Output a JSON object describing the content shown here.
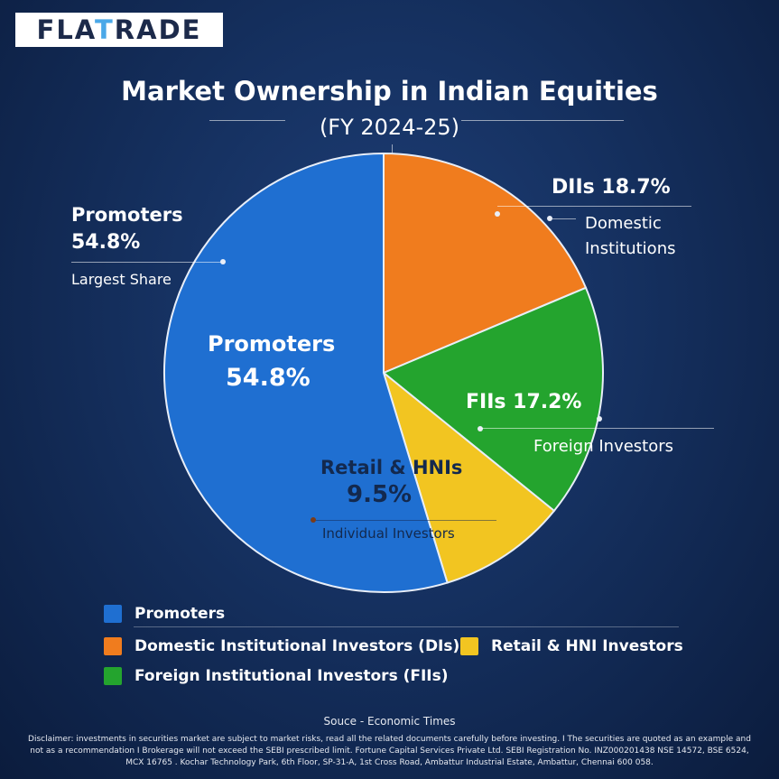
{
  "brand": {
    "prefix": "FLA",
    "accent": "T",
    "suffix": "RADE"
  },
  "title": "Market Ownership in Indian Equities",
  "subtitle": "(FY 2024-25)",
  "annotations": {
    "promoters_title": "Promoters",
    "promoters_pct": "54.8%",
    "promoters_note": "Largest Share",
    "diis_title": "DIIs 18.7%",
    "diis_note_1": "Domestic",
    "diis_note_2": "Institutions",
    "fiis_note": "Foreign Investors"
  },
  "slice_labels": {
    "promoters_name": "Promoters",
    "promoters_pct": "54.8%",
    "fiis": "FIIs 17.2%",
    "retail_name": "Retail & HNIs",
    "retail_pct": "9.5%",
    "retail_note": "Individual Investors"
  },
  "legend": [
    {
      "label": "Promoters",
      "color": "#1f6fd1"
    },
    {
      "label": "Domestic Institutional Investors (DIs)",
      "color": "#f07c1e"
    },
    {
      "label": "Retail & HNI Investors",
      "color": "#f2c521"
    },
    {
      "label": "Foreign Institutional Investors (FIIs)",
      "color": "#24a42e"
    }
  ],
  "source": "Souce -  Economic Times",
  "disclaimer": "Disclaimer: investments in securities market are subject to market risks, read all the related documents carefully before investing. I The securities are quoted as an example and not as a recommendation I Brokerage will not exceed the SEBI prescribed limit. Fortune Capital Services Private Ltd.   SEBI Registration No. INZ000201438 NSE 14572, BSE 6524, MCX 16765 . Kochar Technology Park, 6th Floor, SP-31-A, 1st Cross Road, Ambattur Industrial Estate, Ambattur, Chennai 600 058.",
  "chart_data": {
    "type": "pie",
    "title": "Market Ownership in Indian Equities",
    "subtitle": "(FY 2024-25)",
    "slices": [
      {
        "name": "DIIs",
        "value": 18.7,
        "color": "#f07c1e"
      },
      {
        "name": "FIIs",
        "value": 17.2,
        "color": "#24a42e"
      },
      {
        "name": "Retail & HNIs",
        "value": 9.5,
        "color": "#f2c521"
      },
      {
        "name": "Promoters",
        "value": 54.8,
        "color": "#1f6fd1"
      }
    ]
  }
}
